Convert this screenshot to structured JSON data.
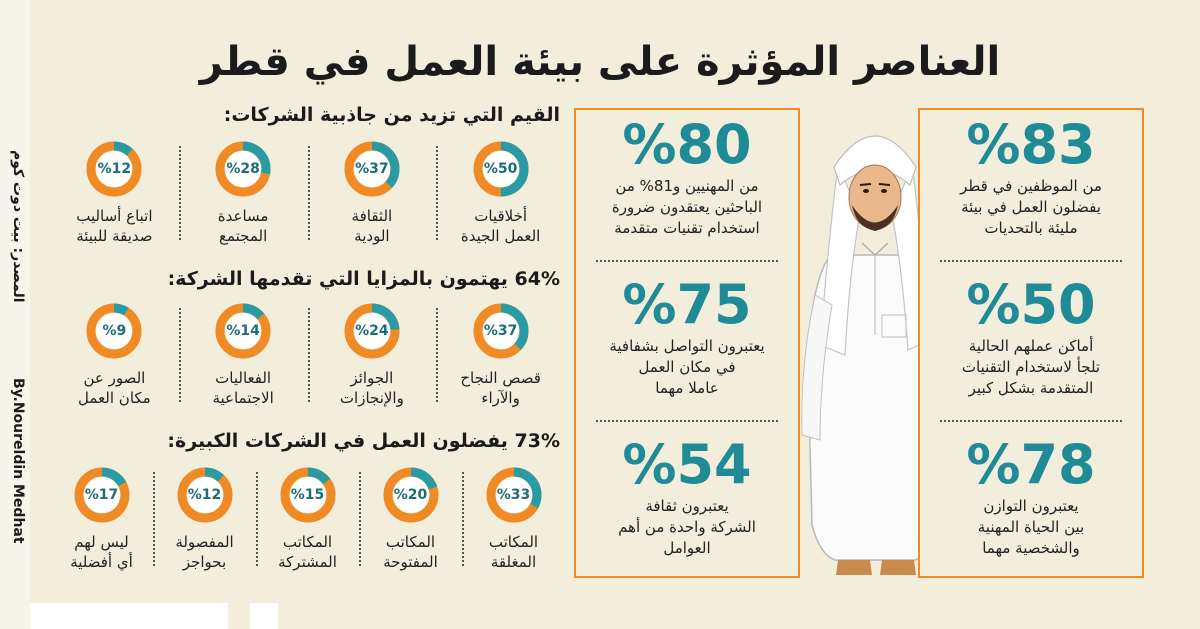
{
  "title": "العناصر المؤثرة على بيئة العمل في قطر",
  "source_label": "المصدر: بيت دوت كوم",
  "byline": "By.Noureldin Medhat",
  "colors": {
    "orange": "#f08a24",
    "teal": "#2a9ba3",
    "teal_text": "#1f8b96",
    "background": "#f3eddc"
  },
  "section1": {
    "heading": "القيم التي تزيد من جاذبية الشركات:",
    "items": [
      {
        "value": 50,
        "label": "%50",
        "caption": [
          "أخلاقيات",
          "العمل الجيدة"
        ]
      },
      {
        "value": 37,
        "label": "%37",
        "caption": [
          "الثقافة",
          "الودية"
        ]
      },
      {
        "value": 28,
        "label": "%28",
        "caption": [
          "مساعدة",
          "المجتمع"
        ]
      },
      {
        "value": 12,
        "label": "%12",
        "caption": [
          "اتباع أساليب",
          "صديقة للبيئة"
        ]
      }
    ]
  },
  "section2": {
    "heading": "64% يهتمون بالمزايا التي تقدمها الشركة:",
    "items": [
      {
        "value": 37,
        "label": "%37",
        "caption": [
          "قصص النجاح",
          "والآراء"
        ]
      },
      {
        "value": 24,
        "label": "%24",
        "caption": [
          "الجوائز",
          "والإنجازات"
        ]
      },
      {
        "value": 14,
        "label": "%14",
        "caption": [
          "الفعاليات",
          "الاجتماعية"
        ]
      },
      {
        "value": 9,
        "label": "%9",
        "caption": [
          "الصور عن",
          "مكان العمل"
        ]
      }
    ]
  },
  "section3": {
    "heading": "73% يفضلون العمل في الشركات الكبيرة:",
    "items": [
      {
        "value": 33,
        "label": "%33",
        "caption": [
          "المكاتب",
          "المغلقة"
        ]
      },
      {
        "value": 20,
        "label": "%20",
        "caption": [
          "المكاتب",
          "المفتوحة"
        ]
      },
      {
        "value": 15,
        "label": "%15",
        "caption": [
          "المكاتب",
          "المشتركة"
        ]
      },
      {
        "value": 12,
        "label": "%12",
        "caption": [
          "المفصولة",
          "بحواجز"
        ]
      },
      {
        "value": 17,
        "label": "%17",
        "caption": [
          "ليس لهم",
          "أي أفضلية"
        ]
      }
    ]
  },
  "panel_right": [
    {
      "pct": "%83",
      "lines": [
        "من الموظفين في قطر",
        "يفضلون العمل في بيئة",
        "مليئة بالتحديات"
      ]
    },
    {
      "pct": "%50",
      "lines": [
        "أماكن عملهم الحالية",
        "تلجأ لاستخدام التقنيات",
        "المتقدمة بشكل كبير"
      ]
    },
    {
      "pct": "%78",
      "lines": [
        "يعتبرون التوازن",
        "بين الحياة المهنية",
        "والشخصية مهما"
      ]
    }
  ],
  "panel_left": [
    {
      "pct": "%80",
      "lines": [
        "من المهنيين و81% من",
        "الباحثين يعتقدون ضرورة",
        "استخدام تقنيات متقدمة"
      ]
    },
    {
      "pct": "%75",
      "lines": [
        "يعتبرون التواصل بشفافية",
        "في مكان العمل",
        "عاملا مهما"
      ]
    },
    {
      "pct": "%54",
      "lines": [
        "يعتبرون ثقافة",
        "الشركة واحدة من أهم",
        "العوامل"
      ]
    }
  ]
}
